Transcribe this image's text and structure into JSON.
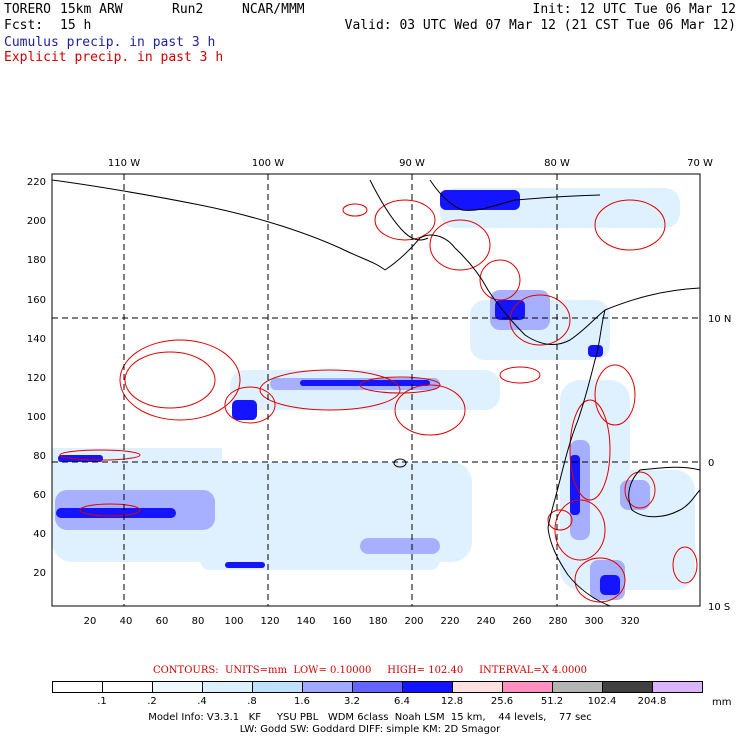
{
  "header": {
    "model": "TORERO",
    "resolution": "15km ARW",
    "run": "Run2",
    "org": "NCAR/MMM",
    "init": "Init: 12 UTC Tue 06 Mar 12",
    "fcst_label": "Fcst:",
    "fcst_value": "15 h",
    "valid": "Valid: 03 UTC Wed 07 Mar 12 (21 CST Tue 06 Mar 12)",
    "field1": "Cumulus precip. in past 3 h",
    "field2": "Explicit precip. in past 3 h"
  },
  "colors": {
    "field1": "#2020a0",
    "field2": "#d00000",
    "contour": "#e00000",
    "coast": "#000000"
  },
  "map": {
    "lon_labels": [
      "110 W",
      "100 W",
      "90 W",
      "80 W",
      "70 W"
    ],
    "lat_labels": [
      "10 N",
      "0",
      "10 S"
    ],
    "y_ticks": [
      "220",
      "200",
      "180",
      "160",
      "140",
      "120",
      "100",
      "80",
      "60",
      "40",
      "20"
    ],
    "x_ticks": [
      "20",
      "40",
      "60",
      "80",
      "100",
      "120",
      "140",
      "160",
      "180",
      "200",
      "220",
      "240",
      "260",
      "280",
      "300",
      "320"
    ]
  },
  "contours": {
    "label": "CONTOURS:",
    "units": "UNITS=mm",
    "low": "LOW= 0.10000",
    "high": "HIGH= 102.40",
    "interval": "INTERVAL=X 4.0000"
  },
  "legend": {
    "labels": [
      ".1",
      ".2",
      ".4",
      ".8",
      "1.6",
      "3.2",
      "6.4",
      "12.8",
      "25.6",
      "51.2",
      "102.4",
      "204.8"
    ],
    "unit": "mm",
    "colors": [
      "#ffffff",
      "#ffffff",
      "#f0f8ff",
      "#dcf0ff",
      "#c0e0ff",
      "#a0a8ff",
      "#6464ff",
      "#1414ff",
      "#ffe0e0",
      "#ff90c0",
      "#b4b4b4",
      "#404040",
      "#dcb4ff"
    ]
  },
  "model_info": {
    "line1": "Model Info: V3.3.1   KF     YSU PBL   WDM 6class  Noah LSM  15 km,    44 levels,    77 sec",
    "line2": "LW: Godd SW: Goddard DIFF: simple KM: 2D Smagor"
  }
}
